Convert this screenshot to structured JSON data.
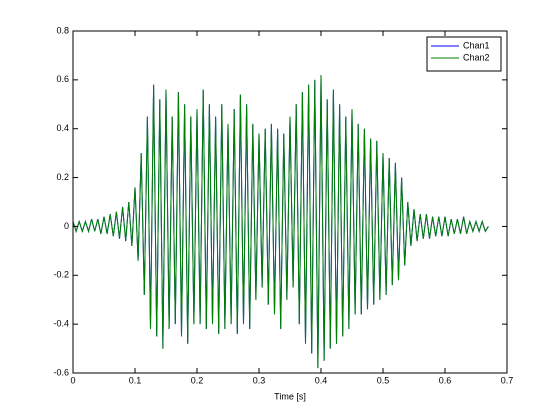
{
  "chart_data": {
    "type": "line",
    "x_label": "Time [s]",
    "x": [
      0,
      0.005,
      0.01,
      0.015,
      0.02,
      0.025,
      0.03,
      0.035,
      0.04,
      0.045,
      0.05,
      0.055,
      0.06,
      0.065,
      0.07,
      0.075,
      0.08,
      0.085,
      0.09,
      0.095,
      0.1,
      0.105,
      0.11,
      0.115,
      0.12,
      0.125,
      0.13,
      0.135,
      0.14,
      0.145,
      0.15,
      0.155,
      0.16,
      0.165,
      0.17,
      0.175,
      0.18,
      0.185,
      0.19,
      0.195,
      0.2,
      0.205,
      0.21,
      0.215,
      0.22,
      0.225,
      0.23,
      0.235,
      0.24,
      0.245,
      0.25,
      0.255,
      0.26,
      0.265,
      0.27,
      0.275,
      0.28,
      0.285,
      0.29,
      0.295,
      0.3,
      0.305,
      0.31,
      0.315,
      0.32,
      0.325,
      0.33,
      0.335,
      0.34,
      0.345,
      0.35,
      0.355,
      0.36,
      0.365,
      0.37,
      0.375,
      0.38,
      0.385,
      0.39,
      0.395,
      0.4,
      0.405,
      0.41,
      0.415,
      0.42,
      0.425,
      0.43,
      0.435,
      0.44,
      0.445,
      0.45,
      0.455,
      0.46,
      0.465,
      0.47,
      0.475,
      0.48,
      0.485,
      0.49,
      0.495,
      0.5,
      0.505,
      0.51,
      0.515,
      0.52,
      0.525,
      0.53,
      0.535,
      0.54,
      0.545,
      0.55,
      0.555,
      0.56,
      0.565,
      0.57,
      0.575,
      0.58,
      0.585,
      0.59,
      0.595,
      0.6,
      0.605,
      0.61,
      0.615,
      0.62,
      0.625,
      0.63,
      0.635,
      0.64,
      0.645,
      0.65,
      0.655,
      0.66,
      0.665,
      0.67
    ],
    "series": [
      {
        "name": "Chan1",
        "color": "#0000ff",
        "values": [
          0.02,
          -0.02,
          0.02,
          -0.02,
          0.02,
          -0.02,
          0.03,
          -0.02,
          0.03,
          -0.03,
          0.04,
          -0.03,
          0.05,
          -0.04,
          0.06,
          -0.05,
          0.08,
          -0.06,
          0.1,
          -0.08,
          0.16,
          -0.14,
          0.3,
          -0.28,
          0.45,
          -0.42,
          0.58,
          -0.45,
          0.52,
          -0.5,
          0.56,
          -0.42,
          0.45,
          -0.4,
          0.55,
          -0.45,
          0.5,
          -0.48,
          0.45,
          -0.4,
          0.48,
          -0.4,
          0.56,
          -0.42,
          0.5,
          -0.4,
          0.45,
          -0.44,
          0.5,
          -0.42,
          0.42,
          -0.4,
          0.48,
          -0.44,
          0.54,
          -0.4,
          0.5,
          -0.42,
          0.42,
          -0.3,
          0.38,
          -0.25,
          0.4,
          -0.32,
          0.42,
          -0.36,
          0.4,
          -0.42,
          0.38,
          -0.3,
          0.45,
          -0.25,
          0.5,
          -0.4,
          0.55,
          -0.48,
          0.58,
          -0.52,
          0.6,
          -0.58,
          0.62,
          -0.55,
          0.52,
          -0.5,
          0.56,
          -0.48,
          0.5,
          -0.45,
          0.45,
          -0.42,
          0.48,
          -0.36,
          0.42,
          -0.36,
          0.4,
          -0.34,
          0.36,
          -0.32,
          0.35,
          -0.3,
          0.3,
          -0.28,
          0.28,
          -0.24,
          0.26,
          -0.22,
          0.2,
          -0.16,
          0.1,
          -0.08,
          0.07,
          -0.06,
          0.05,
          -0.05,
          0.05,
          -0.05,
          0.04,
          -0.04,
          0.04,
          -0.04,
          0.04,
          -0.04,
          0.03,
          -0.03,
          0.03,
          -0.03,
          0.04,
          -0.03,
          0.02,
          -0.02,
          0.02,
          -0.02,
          0.02,
          -0.02,
          0
        ]
      },
      {
        "name": "Chan2",
        "color": "#008000",
        "values": [
          0.02,
          -0.02,
          0.02,
          -0.02,
          0.02,
          -0.02,
          0.03,
          -0.02,
          0.03,
          -0.03,
          0.04,
          -0.03,
          0.05,
          -0.04,
          0.06,
          -0.05,
          0.08,
          -0.06,
          0.1,
          -0.08,
          0.16,
          -0.14,
          0.3,
          -0.28,
          0.45,
          -0.42,
          0.58,
          -0.45,
          0.52,
          -0.5,
          0.56,
          -0.42,
          0.45,
          -0.4,
          0.55,
          -0.45,
          0.5,
          -0.48,
          0.45,
          -0.4,
          0.48,
          -0.4,
          0.56,
          -0.42,
          0.5,
          -0.4,
          0.45,
          -0.44,
          0.5,
          -0.42,
          0.42,
          -0.4,
          0.48,
          -0.44,
          0.54,
          -0.4,
          0.5,
          -0.42,
          0.42,
          -0.3,
          0.38,
          -0.25,
          0.4,
          -0.32,
          0.42,
          -0.36,
          0.4,
          -0.42,
          0.38,
          -0.3,
          0.45,
          -0.25,
          0.5,
          -0.4,
          0.55,
          -0.48,
          0.58,
          -0.52,
          0.6,
          -0.58,
          0.62,
          -0.55,
          0.52,
          -0.5,
          0.56,
          -0.48,
          0.5,
          -0.45,
          0.45,
          -0.42,
          0.48,
          -0.36,
          0.42,
          -0.36,
          0.4,
          -0.34,
          0.36,
          -0.32,
          0.35,
          -0.3,
          0.3,
          -0.28,
          0.28,
          -0.24,
          0.26,
          -0.22,
          0.2,
          -0.16,
          0.1,
          -0.08,
          0.07,
          -0.06,
          0.05,
          -0.05,
          0.05,
          -0.05,
          0.04,
          -0.04,
          0.04,
          -0.04,
          0.04,
          -0.04,
          0.03,
          -0.03,
          0.03,
          -0.03,
          0.04,
          -0.03,
          0.02,
          -0.02,
          0.02,
          -0.02,
          0.02,
          -0.02,
          0
        ]
      }
    ],
    "xlim": [
      0,
      0.7
    ],
    "xticks": [
      0,
      0.1,
      0.2,
      0.3,
      0.4,
      0.5,
      0.6,
      0.7
    ],
    "ylim": [
      -0.6,
      0.8
    ],
    "yticks": [
      -0.6,
      -0.4,
      -0.2,
      0,
      0.2,
      0.4,
      0.6,
      0.8
    ],
    "grid": false,
    "legend": "upper right"
  }
}
